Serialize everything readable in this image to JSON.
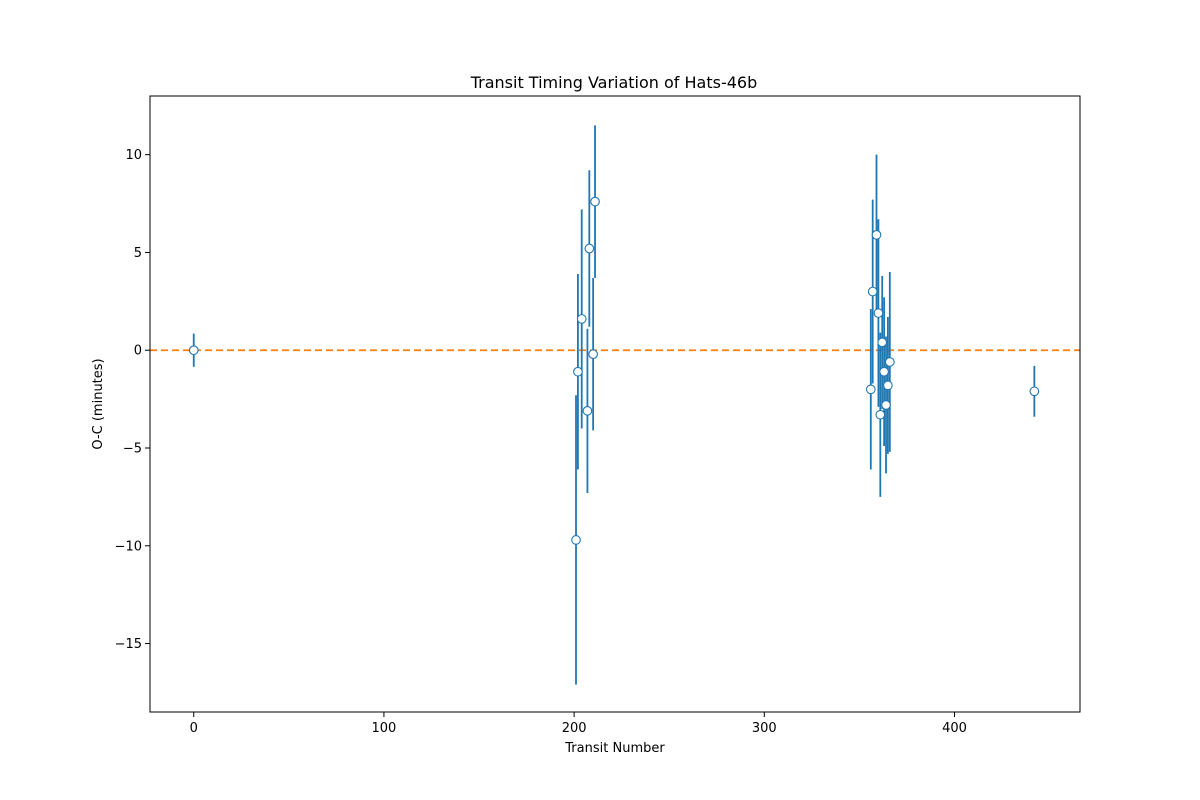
{
  "chart_data": {
    "type": "scatter",
    "title": "Transit Timing Variation of Hats-46b",
    "xlabel": "Transit Number",
    "ylabel": "O-C (minutes)",
    "xlim": [
      -23,
      466
    ],
    "ylim": [
      -18.5,
      13.0
    ],
    "xticks": [
      0,
      100,
      200,
      300,
      400
    ],
    "yticks": [
      -15,
      -10,
      -5,
      0,
      5,
      10
    ],
    "grid": false,
    "reference_line": {
      "y": 0,
      "style": "dashed",
      "color": "#ff7f0e"
    },
    "series": [
      {
        "marker": "open-circle",
        "color": "#1f77b4",
        "points": [
          {
            "x": 0,
            "y": 0.0,
            "err": 0.85
          },
          {
            "x": 201,
            "y": -9.7,
            "err": 7.4
          },
          {
            "x": 202,
            "y": -1.1,
            "err": 5.0
          },
          {
            "x": 204,
            "y": 1.6,
            "err": 5.6
          },
          {
            "x": 207,
            "y": -3.1,
            "err": 4.2
          },
          {
            "x": 208,
            "y": 5.2,
            "err": 4.0
          },
          {
            "x": 210,
            "y": -0.2,
            "err": 3.9
          },
          {
            "x": 211,
            "y": 7.6,
            "err": 3.9
          },
          {
            "x": 356,
            "y": -2.0,
            "err": 4.1
          },
          {
            "x": 357,
            "y": 3.0,
            "err": 4.7
          },
          {
            "x": 359,
            "y": 5.9,
            "err": 4.1
          },
          {
            "x": 360,
            "y": 1.9,
            "err": 4.8
          },
          {
            "x": 361,
            "y": -3.3,
            "err": 4.2
          },
          {
            "x": 362,
            "y": 0.4,
            "err": 3.4
          },
          {
            "x": 363,
            "y": -1.1,
            "err": 3.8
          },
          {
            "x": 364,
            "y": -2.8,
            "err": 3.5
          },
          {
            "x": 365,
            "y": -1.8,
            "err": 3.5
          },
          {
            "x": 366,
            "y": -0.6,
            "err": 4.6
          },
          {
            "x": 442,
            "y": -2.1,
            "err": 1.3
          }
        ]
      }
    ]
  }
}
